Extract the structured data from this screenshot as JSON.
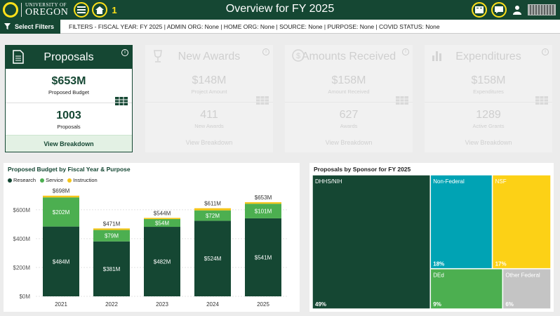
{
  "header": {
    "logo_line1": "UNIVERSITY OF",
    "logo_line2": "OREGON",
    "tour_step": "1",
    "title": "Overview for FY 2025"
  },
  "filters": {
    "button_label": "Select Filters",
    "summary": "FILTERS - FISCAL YEAR: FY 2025 | ADMIN ORG: None | HOME ORG: None | SOURCE: None | PURPOSE: None | COVID STATUS: None"
  },
  "cards": [
    {
      "title": "Proposals",
      "value1": "$653M",
      "label1": "Proposed Budget",
      "value2": "1003",
      "label2": "Proposals",
      "breakdown": "View Breakdown",
      "active": true
    },
    {
      "title": "New Awards",
      "value1": "$148M",
      "label1": "Project Amount",
      "value2": "411",
      "label2": "New Awards",
      "breakdown": "View Breakdown",
      "active": false
    },
    {
      "title": "Amounts Received",
      "value1": "$158M",
      "label1": "Amount Received",
      "value2": "627",
      "label2": "Awards",
      "breakdown": "View Breakdown",
      "active": false
    },
    {
      "title": "Expenditures",
      "value1": "$158M",
      "label1": "Expenditures",
      "value2": "1289",
      "label2": "Active Grants",
      "breakdown": "View Breakdown",
      "active": false
    }
  ],
  "info_glyph": "i",
  "colors": {
    "brand": "#154733",
    "accent": "#fee11a",
    "research": "#154733",
    "service": "#4caf50",
    "instruction": "#f5c518"
  },
  "chart_data": [
    {
      "type": "bar",
      "title": "Proposed Budget by Fiscal Year & Purpose",
      "categories": [
        "2021",
        "2022",
        "2023",
        "2024",
        "2025"
      ],
      "series": [
        {
          "name": "Research",
          "values": [
            484,
            381,
            482,
            524,
            541
          ],
          "labels": [
            "$484M",
            "$381M",
            "$482M",
            "$524M",
            "$541M"
          ]
        },
        {
          "name": "Service",
          "values": [
            202,
            79,
            54,
            72,
            101
          ],
          "labels": [
            "$202M",
            "$79M",
            "$54M",
            "$72M",
            "$101M"
          ]
        },
        {
          "name": "Instruction",
          "values": [
            12,
            11,
            8,
            15,
            11
          ]
        }
      ],
      "totals": [
        "$698M",
        "$471M",
        "$544M",
        "$611M",
        "$653M"
      ],
      "yticks": [
        {
          "v": 0,
          "label": "$0M"
        },
        {
          "v": 200,
          "label": "$200M"
        },
        {
          "v": 400,
          "label": "$400M"
        },
        {
          "v": 600,
          "label": "$600M"
        }
      ],
      "ylim": [
        0,
        750
      ],
      "legend_position": "top-left"
    },
    {
      "type": "treemap",
      "title": "Proposals by Sponsor for FY 2025",
      "items": [
        {
          "name": "DHHS/NIH",
          "pct": 49,
          "label": "49%",
          "color": "#154733"
        },
        {
          "name": "Non-Federal",
          "pct": 18,
          "label": "18%",
          "color": "#00a3b4"
        },
        {
          "name": "NSF",
          "pct": 17,
          "label": "17%",
          "color": "#fcd116"
        },
        {
          "name": "DEd",
          "pct": 9,
          "label": "9%",
          "color": "#4caf50"
        },
        {
          "name": "Other Federal",
          "pct": 6,
          "label": "6%",
          "color": "#c4c4c4"
        }
      ]
    }
  ]
}
